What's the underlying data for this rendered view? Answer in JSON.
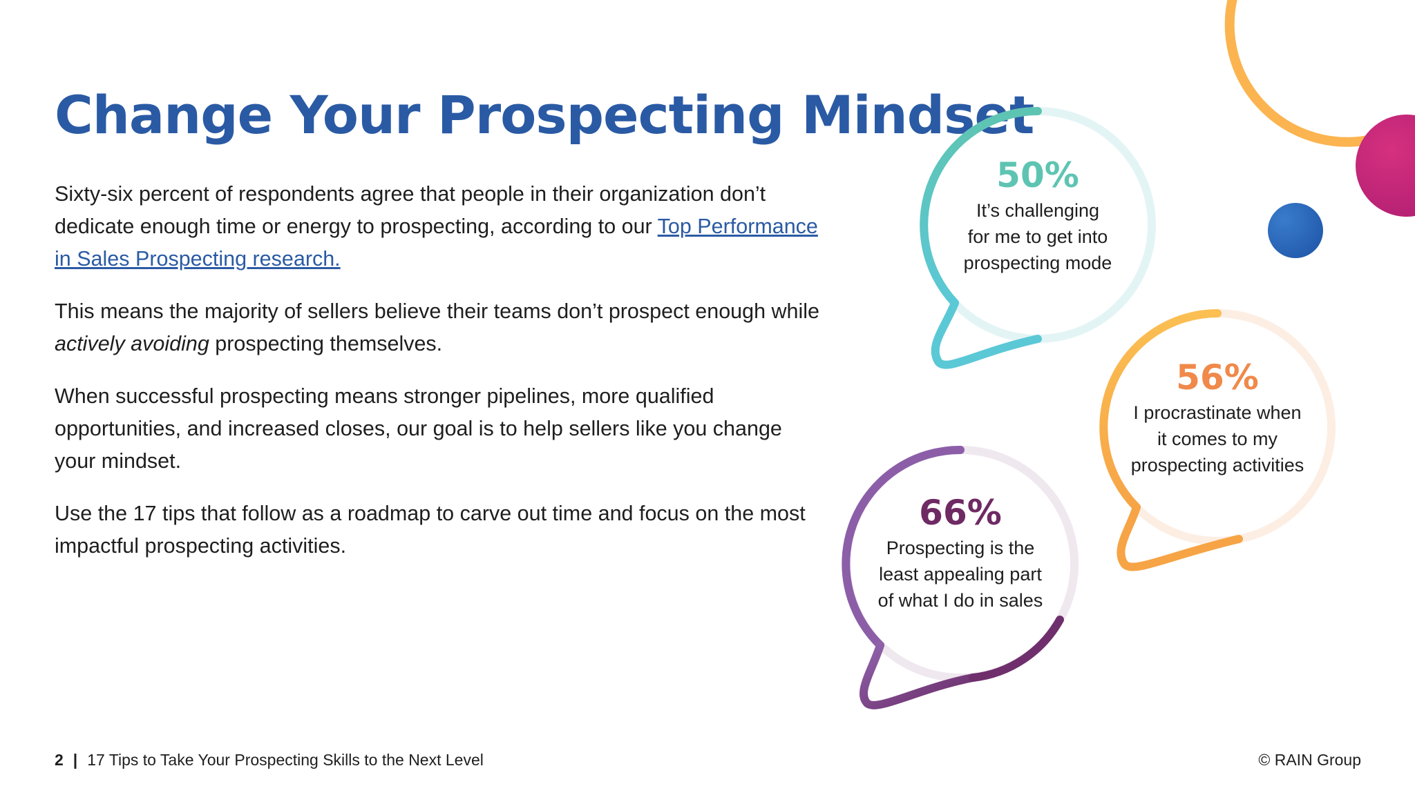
{
  "title": "Change Your Prospecting Mindset",
  "paragraphs": {
    "p1_text": "Sixty-six percent of respondents agree that people in their organization don’t dedicate enough time or energy to prospecting, according to our ",
    "p1_link": "Top Performance in Sales Prospecting research.",
    "p2_before": "This means the majority of sellers believe their teams don’t prospect enough while ",
    "p2_italic": "actively avoiding",
    "p2_after": " prospecting themselves.",
    "p3": "When successful prospecting means stronger pipelines, more qualified opportunities, and increased closes, our goal is to help sellers like you change your mindset.",
    "p4": "Use the 17 tips that follow as a roadmap to carve out time and focus on the most impactful prospecting activities."
  },
  "stats": [
    {
      "value": "50%",
      "caption_lines": [
        "It’s challenging",
        "for me to get into",
        "prospecting mode"
      ],
      "fraction": 0.5,
      "color_main": "#5ec4b2",
      "color_end": "#5bc8d6",
      "color_track": "#e3f4f5"
    },
    {
      "value": "56%",
      "caption_lines": [
        "I procrastinate when",
        "it comes to my",
        "prospecting activities"
      ],
      "fraction": 0.56,
      "color_main": "#f9b94d",
      "color_end": "#f39a45",
      "color_track": "#fdeee4",
      "text_color": "#f0894a"
    },
    {
      "value": "66%",
      "caption_lines": [
        "Prospecting is the",
        "least appealing part",
        "of what I do in sales"
      ],
      "fraction": 0.66,
      "color_main": "#8c5ea8",
      "color_end": "#6e2f6c",
      "color_track": "#efe8ef",
      "text_color": "#6e2a63"
    }
  ],
  "decor": {
    "orange_arc": "#fbb450",
    "magenta_circle": "#c7257a",
    "blue_dot": "#2a6bb8"
  },
  "footer": {
    "page_number": "2",
    "separator": "|",
    "doc_title": "17 Tips to Take Your Prospecting Skills to the Next Level",
    "copyright": "© RAIN Group"
  }
}
